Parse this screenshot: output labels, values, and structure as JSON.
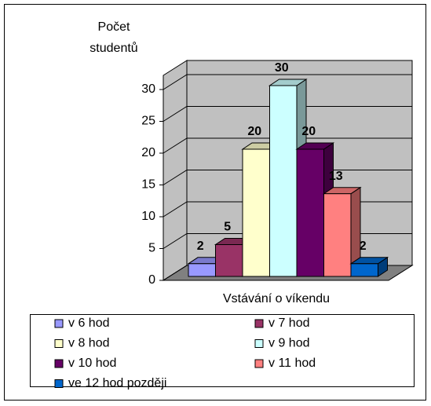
{
  "chart_data": {
    "type": "bar",
    "y_axis_label": [
      "Počet",
      "studentů"
    ],
    "x_axis_label": "Vstávání o víkendu",
    "ylim": [
      0,
      30
    ],
    "yticks": [
      0,
      5,
      10,
      15,
      20,
      25,
      30
    ],
    "grid": true,
    "series": [
      {
        "name": "v 6 hod",
        "color": "#9999ff",
        "values": [
          2
        ]
      },
      {
        "name": "v 7 hod",
        "color": "#993366",
        "values": [
          5
        ]
      },
      {
        "name": "v 8 hod",
        "color": "#ffffcc",
        "values": [
          20
        ]
      },
      {
        "name": "v 9 hod",
        "color": "#ccffff",
        "values": [
          30
        ]
      },
      {
        "name": "v 10 hod",
        "color": "#660066",
        "values": [
          20
        ]
      },
      {
        "name": "v 11 hod",
        "color": "#ff8080",
        "values": [
          13
        ]
      },
      {
        "name": "ve 12 hod později",
        "color": "#0066cc",
        "values": [
          2
        ]
      }
    ]
  }
}
